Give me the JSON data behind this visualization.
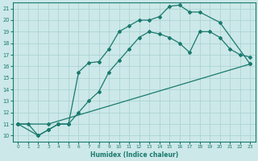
{
  "xlabel": "Humidex (Indice chaleur)",
  "xlim": [
    -0.5,
    23.5
  ],
  "ylim": [
    9.5,
    21.5
  ],
  "yticks": [
    10,
    11,
    12,
    13,
    14,
    15,
    16,
    17,
    18,
    19,
    20,
    21
  ],
  "xticks": [
    0,
    1,
    2,
    3,
    4,
    5,
    6,
    7,
    8,
    9,
    10,
    11,
    12,
    13,
    14,
    15,
    16,
    17,
    18,
    19,
    20,
    21,
    22,
    23
  ],
  "line_color": "#1a7a6e",
  "bg_color": "#cce8e8",
  "grid_color": "#a8d0d0",
  "line1_x": [
    0,
    1,
    2,
    3,
    4,
    5,
    6,
    7,
    8,
    9,
    10,
    11,
    12,
    13,
    14,
    15,
    16,
    17,
    18,
    20,
    23
  ],
  "line1_y": [
    11,
    11,
    10,
    10.5,
    11,
    11,
    15.5,
    16.3,
    16.4,
    17.5,
    19.0,
    19.5,
    20.0,
    20.0,
    20.3,
    21.2,
    21.3,
    20.7,
    20.7,
    19.8,
    16.2
  ],
  "line2_x": [
    0,
    2,
    3,
    4,
    5,
    6,
    7,
    8,
    9,
    10,
    11,
    12,
    13,
    14,
    15,
    16,
    17,
    18,
    19,
    20,
    21,
    22,
    23
  ],
  "line2_y": [
    11,
    10,
    10.5,
    11,
    11,
    12.0,
    13.0,
    13.8,
    15.5,
    16.5,
    17.5,
    18.5,
    19.0,
    18.8,
    18.5,
    18.0,
    17.2,
    19.0,
    19.0,
    18.5,
    17.5,
    17.0,
    16.8
  ],
  "line3_x": [
    0,
    3,
    23
  ],
  "line3_y": [
    11,
    11,
    16.2
  ]
}
